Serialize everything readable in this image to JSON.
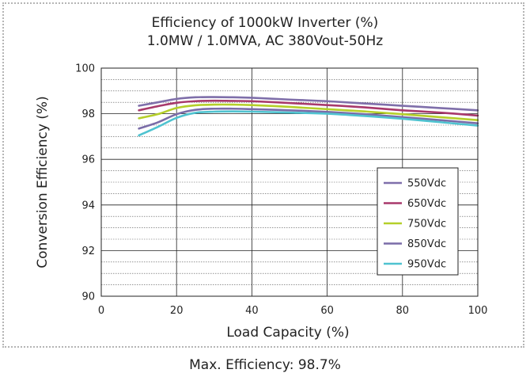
{
  "chart_data": {
    "type": "line",
    "title": "Efficiency of 1000kW Inverter (%)",
    "subtitle": "1.0MW / 1.0MVA, AC 380Vout-50Hz",
    "xlabel": "Load Capacity (%)",
    "ylabel": "Conversion Efficiency (%)",
    "xlim": [
      0,
      100
    ],
    "ylim": [
      90,
      100
    ],
    "xticks": [
      0,
      20,
      40,
      60,
      80,
      100
    ],
    "yticks": [
      90,
      92,
      94,
      96,
      98,
      100
    ],
    "grid": true,
    "legend_position": "bottom-right",
    "x": [
      10,
      15,
      20,
      25,
      30,
      35,
      40,
      50,
      60,
      70,
      80,
      90,
      100
    ],
    "series": [
      {
        "name": "550Vdc",
        "color": "#7f6faa",
        "values": [
          98.35,
          98.5,
          98.65,
          98.72,
          98.73,
          98.72,
          98.7,
          98.62,
          98.55,
          98.45,
          98.35,
          98.25,
          98.15
        ]
      },
      {
        "name": "650Vdc",
        "color": "#a8396b",
        "values": [
          98.15,
          98.33,
          98.48,
          98.55,
          98.57,
          98.56,
          98.55,
          98.47,
          98.38,
          98.28,
          98.15,
          98.05,
          97.92
        ]
      },
      {
        "name": "750Vdc",
        "color": "#b5cf2a",
        "values": [
          97.8,
          97.98,
          98.25,
          98.37,
          98.4,
          98.4,
          98.38,
          98.3,
          98.2,
          98.1,
          97.98,
          97.85,
          97.72
        ]
      },
      {
        "name": "850Vdc",
        "color": "#7a6ca8",
        "values": [
          97.35,
          97.62,
          97.98,
          98.17,
          98.22,
          98.22,
          98.2,
          98.15,
          98.08,
          97.98,
          97.85,
          97.72,
          97.58
        ]
      },
      {
        "name": "950Vdc",
        "color": "#4fc3d0",
        "values": [
          97.05,
          97.42,
          97.82,
          98.04,
          98.09,
          98.1,
          98.09,
          98.05,
          98.0,
          97.9,
          97.78,
          97.63,
          97.48
        ]
      }
    ]
  },
  "caption": "Max. Efficiency: 98.7%"
}
